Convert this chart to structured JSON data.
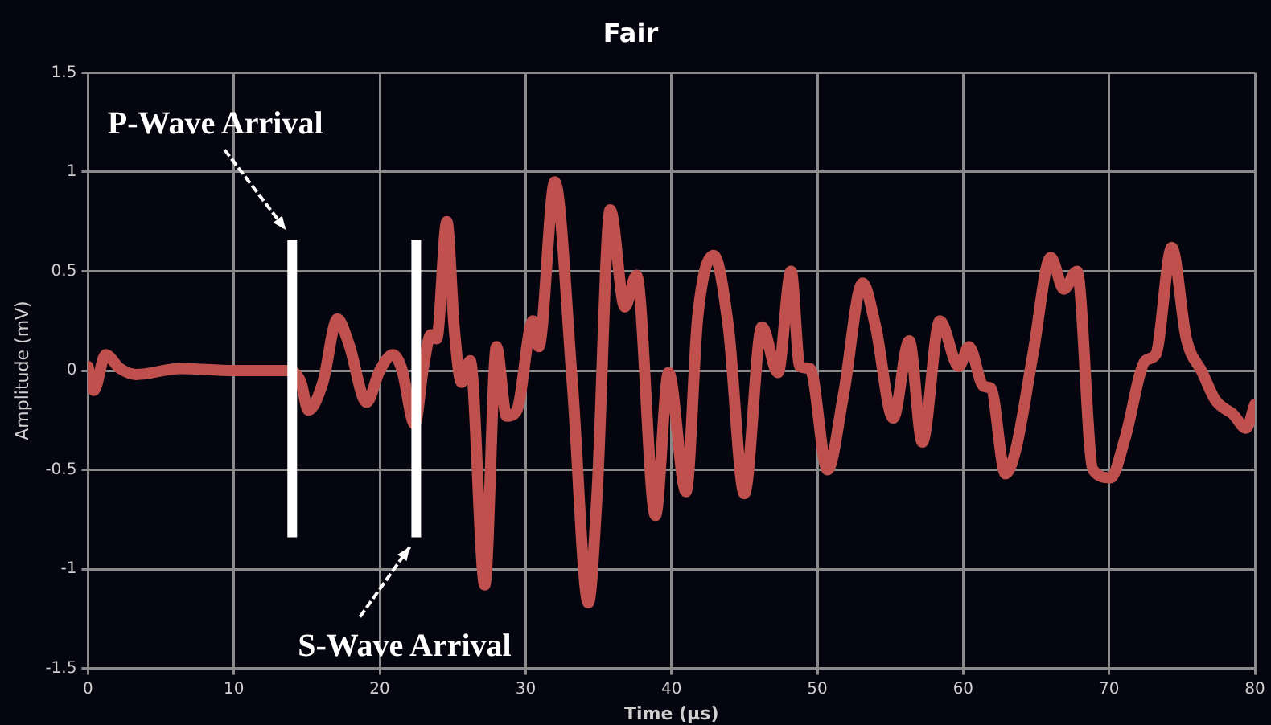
{
  "chart_data": {
    "type": "line",
    "title": "Fair",
    "xlabel": "Time (µs)",
    "ylabel": "Amplitude (mV)",
    "xlim": [
      0,
      80
    ],
    "xticks": [
      0,
      10,
      20,
      30,
      40,
      50,
      60,
      70,
      80
    ],
    "ylim": [
      -1.5,
      1.5
    ],
    "yticks": [
      -1.5,
      -1,
      -0.5,
      0,
      0.5,
      1,
      1.5
    ],
    "grid": true,
    "legend": false,
    "marker": "none",
    "line_style": "solid",
    "series": [
      {
        "color": "#c0504d",
        "x": [
          0,
          0.4,
          1.2,
          2.2,
          3.3,
          6.3,
          10,
          13.8,
          14.6,
          15.1,
          16.1,
          17.1,
          17.9,
          19.1,
          20,
          20.9,
          21.5,
          22.4,
          23,
          23.5,
          23.9,
          24.6,
          25.1,
          25.6,
          26.2,
          27.2,
          28,
          28.7,
          29.4,
          30.5,
          30.9,
          32,
          33.2,
          34.3,
          34.9,
          35.8,
          36.8,
          37.6,
          38.9,
          39.8,
          41,
          41.8,
          42.9,
          43.9,
          45,
          46.2,
          47.3,
          48.2,
          48.8,
          49.5,
          50.7,
          51.8,
          53.1,
          54,
          55.2,
          56.3,
          57.2,
          58.4,
          59.7,
          60.4,
          61.4,
          61.9,
          62.9,
          63.6,
          64.8,
          66,
          66.9,
          67.8,
          68.9,
          70.1,
          71.1,
          72.5,
          73.2,
          74.3,
          75.3,
          76.4,
          77.3,
          78.5,
          79.4,
          80
        ],
        "values": [
          0.02,
          -0.1,
          0.08,
          0.01,
          -0.02,
          0.01,
          0,
          0,
          -0.06,
          -0.2,
          -0.06,
          0.26,
          0.13,
          -0.16,
          0,
          0.08,
          0.01,
          -0.27,
          0.02,
          0.18,
          0.16,
          0.75,
          0.22,
          -0.06,
          0.05,
          -1.08,
          0.12,
          -0.23,
          -0.2,
          0.25,
          0.12,
          0.95,
          -0.06,
          -1.17,
          -0.62,
          0.81,
          0.32,
          0.48,
          -0.73,
          -0.01,
          -0.61,
          0.27,
          0.58,
          0.22,
          -0.62,
          0.22,
          -0.01,
          0.5,
          0.02,
          0.01,
          -0.5,
          -0.12,
          0.44,
          0.22,
          -0.24,
          0.15,
          -0.36,
          0.25,
          0.02,
          0.12,
          -0.08,
          -0.09,
          -0.52,
          -0.4,
          0.09,
          0.57,
          0.41,
          0.5,
          -0.5,
          -0.54,
          -0.34,
          0.05,
          0.08,
          0.62,
          0.16,
          -0.01,
          -0.15,
          -0.22,
          -0.29,
          -0.17
        ]
      }
    ],
    "ref_lines": [
      {
        "axis": "x",
        "value": 14,
        "label": "P-Wave Arrival",
        "color": "#ffffff"
      },
      {
        "axis": "x",
        "value": 22.5,
        "label": "S-Wave Arrival",
        "color": "#ffffff"
      }
    ]
  }
}
